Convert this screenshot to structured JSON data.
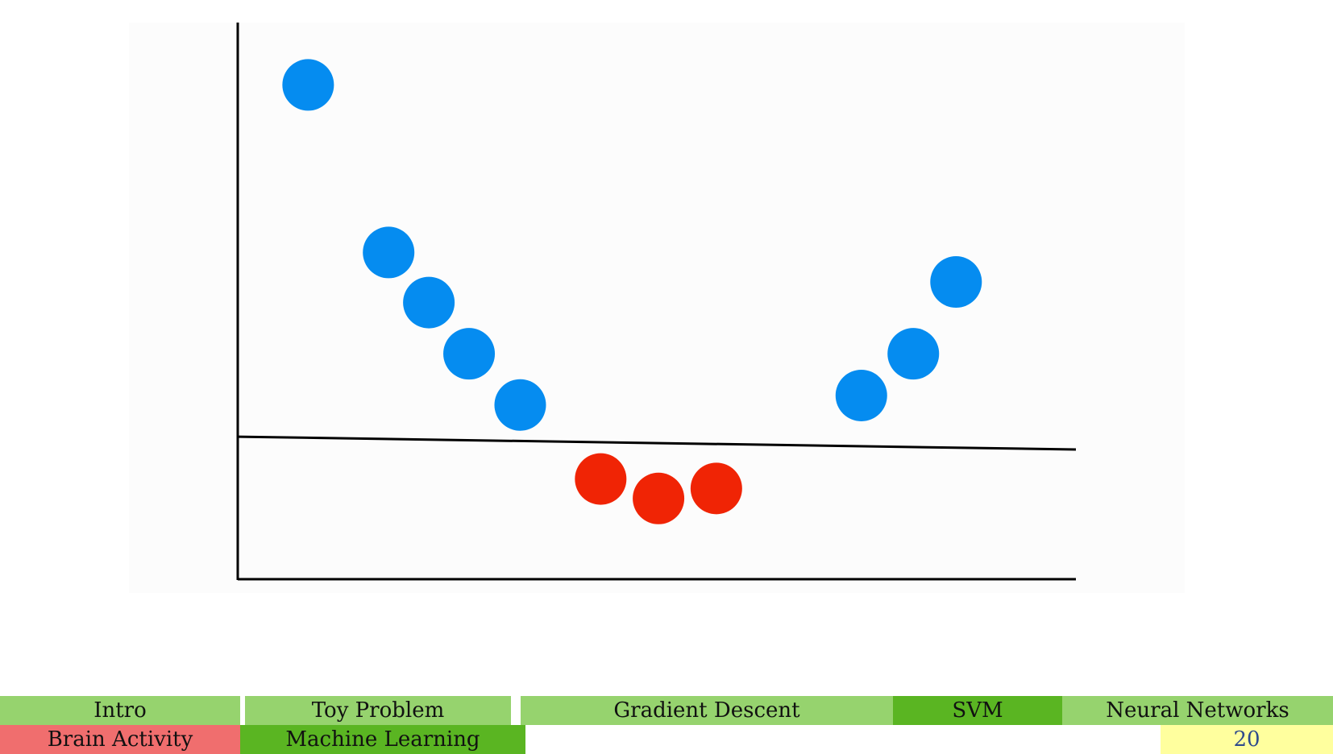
{
  "chart_data": {
    "type": "scatter",
    "title": "",
    "xlabel": "",
    "ylabel": "",
    "xlim": [
      0,
      100
    ],
    "ylim": [
      0,
      100
    ],
    "grid": false,
    "series": [
      {
        "color": "#058cf0",
        "points": [
          {
            "x": 8.4,
            "y": 88.8
          },
          {
            "x": 18.0,
            "y": 58.7
          },
          {
            "x": 22.8,
            "y": 49.7
          },
          {
            "x": 27.6,
            "y": 40.5
          },
          {
            "x": 33.7,
            "y": 31.3
          },
          {
            "x": 74.4,
            "y": 33.0
          },
          {
            "x": 80.6,
            "y": 40.5
          },
          {
            "x": 85.7,
            "y": 53.4
          }
        ]
      },
      {
        "color": "#f02405",
        "points": [
          {
            "x": 43.3,
            "y": 18.0
          },
          {
            "x": 50.2,
            "y": 14.5
          },
          {
            "x": 57.1,
            "y": 16.3
          }
        ]
      }
    ],
    "decision_line": {
      "x": [
        0,
        100
      ],
      "y": [
        25.6,
        23.3
      ],
      "color": "#000000"
    }
  },
  "colors": {
    "blue_point": "#058cf0",
    "red_point": "#f02405",
    "nav_light_green": "#96d36e",
    "nav_dark_green": "#5ab522",
    "nav_red": "#f06e6e",
    "page_number_bg": "#ffff9e"
  },
  "nav": {
    "sections": [
      {
        "label": "Intro",
        "active": false
      },
      {
        "label": "Toy Problem",
        "active": false
      },
      {
        "label": "Gradient Descent",
        "active": false
      },
      {
        "label": "SVM",
        "active": true
      },
      {
        "label": "Neural Networks",
        "active": false
      }
    ],
    "parts": [
      {
        "label": "Brain Activity",
        "active": false
      },
      {
        "label": "Machine Learning",
        "active": true
      }
    ],
    "page_number": "20"
  }
}
